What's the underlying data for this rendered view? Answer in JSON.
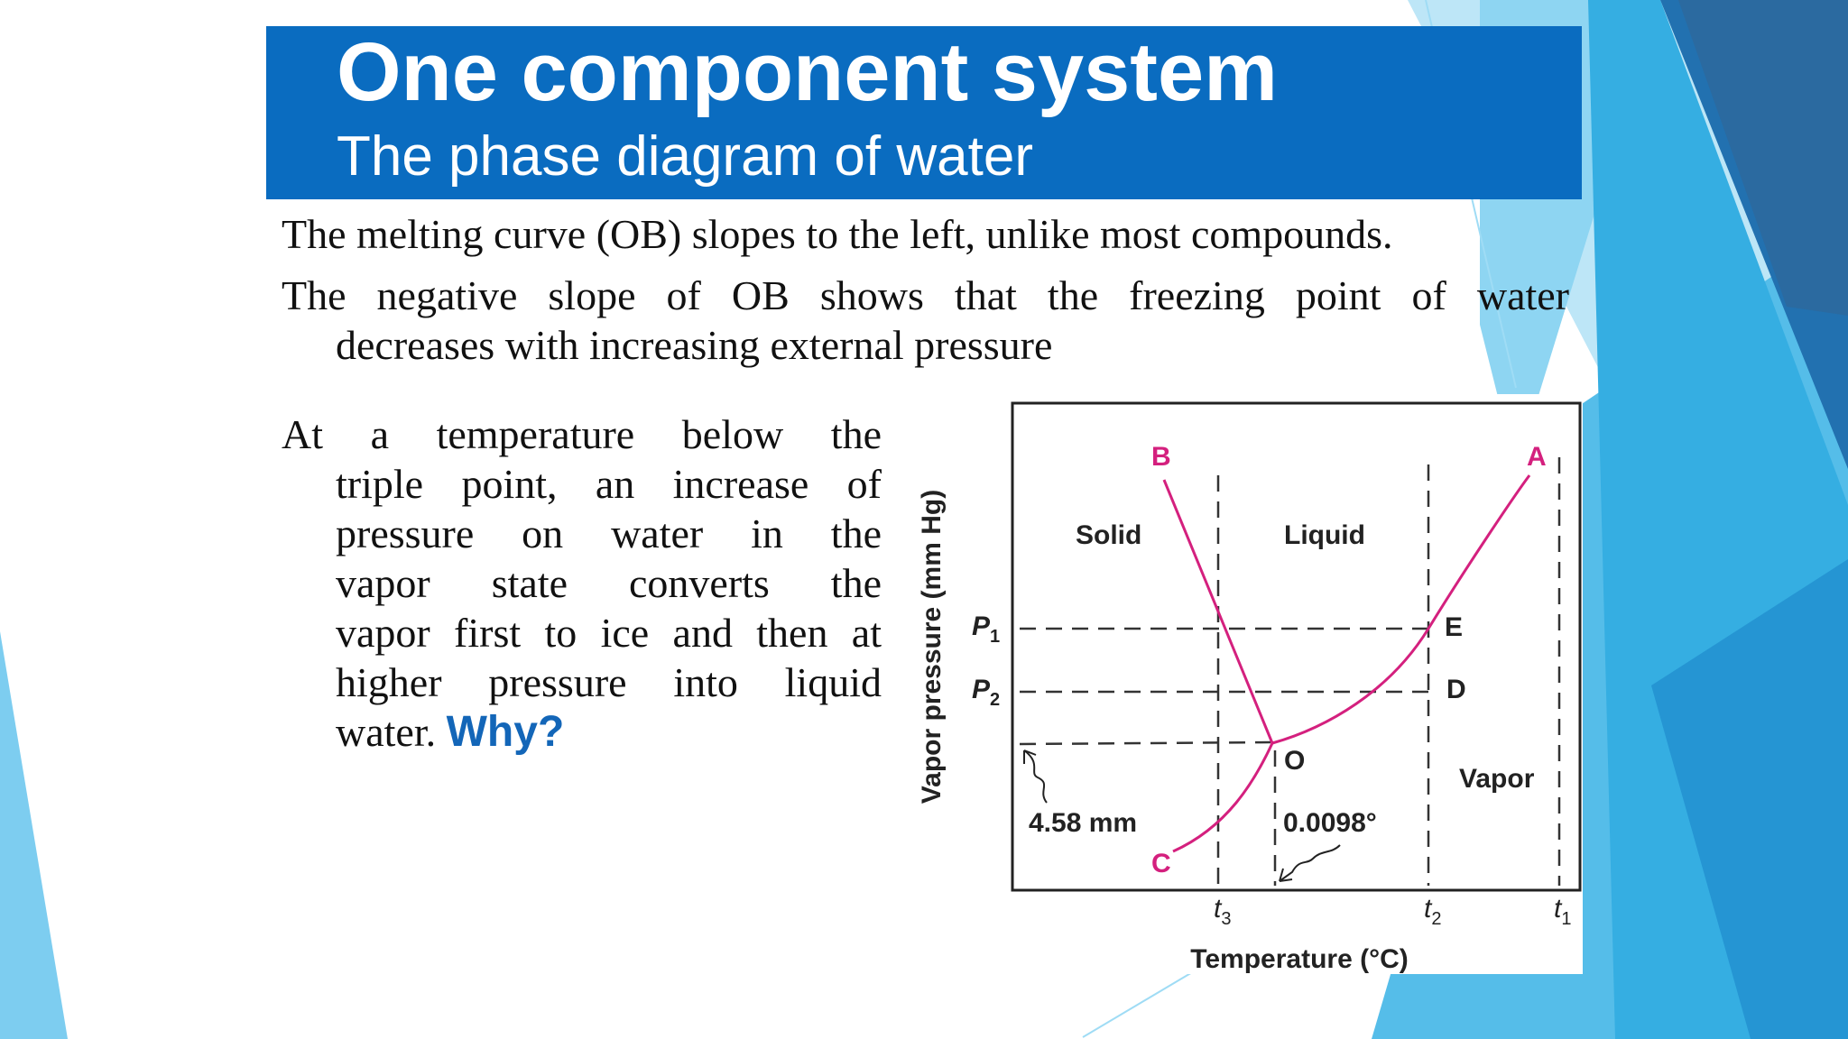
{
  "slide": {
    "title": "One component system",
    "subtitle": "The phase diagram of water",
    "paragraph1": "The melting curve (OB) slopes to the left, unlike most compounds.",
    "paragraph2_line1": "The negative slope of OB shows that the freezing point of water",
    "paragraph2_line2": "decreases with increasing external pressure",
    "paragraph3_lines": [
      "At a temperature below the",
      "triple point, an increase of",
      "pressure on water in the",
      "vapor state converts the",
      "vapor first to ice and then at",
      "higher pressure into liquid",
      "water."
    ],
    "why": "Why?"
  },
  "diagram": {
    "y_axis_label": "Vapor pressure (mm Hg)",
    "x_axis_label": "Temperature (°C)",
    "regions": {
      "solid": "Solid",
      "liquid": "Liquid",
      "vapor": "Vapor"
    },
    "points": {
      "A": "A",
      "B": "B",
      "C": "C",
      "O": "O",
      "E": "E",
      "D": "D"
    },
    "pressure_ticks": {
      "p1": "P",
      "p1_sub": "1",
      "p2": "P",
      "p2_sub": "2"
    },
    "temperature_ticks": {
      "t3": "t",
      "t3_sub": "3",
      "t2": "t",
      "t2_sub": "2",
      "t1": "t",
      "t1_sub": "1"
    },
    "annotations": {
      "triple_pressure": "4.58 mm",
      "triple_temperature": "0.0098°"
    },
    "colors": {
      "curve": "#d4207e",
      "point_label": "#d4207e",
      "frame": "#222222",
      "dash": "#333333"
    }
  },
  "theme": {
    "title_bar": "#0a6cc0",
    "accent_light": "#7dcdf0",
    "accent_mid": "#29a8e0",
    "accent_dark": "#1a6fae",
    "why_color": "#1366b8"
  }
}
